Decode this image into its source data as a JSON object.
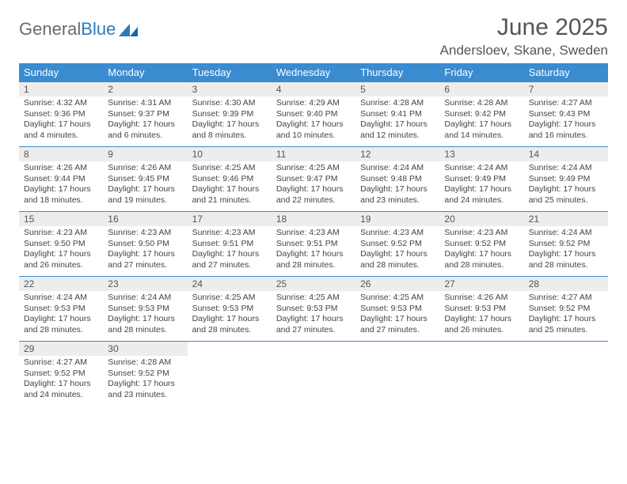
{
  "logo": {
    "text1": "General",
    "text2": "Blue"
  },
  "title": "June 2025",
  "location": "Andersloev, Skane, Sweden",
  "theme": {
    "header_bg": "#3a8bd0",
    "header_fg": "#ffffff",
    "daynum_bg": "#ededed",
    "border": "#3a8bd0"
  },
  "weekdays": [
    "Sunday",
    "Monday",
    "Tuesday",
    "Wednesday",
    "Thursday",
    "Friday",
    "Saturday"
  ],
  "days": [
    {
      "n": "1",
      "sunrise": "4:32 AM",
      "sunset": "9:36 PM",
      "daylight": "17 hours and 4 minutes."
    },
    {
      "n": "2",
      "sunrise": "4:31 AM",
      "sunset": "9:37 PM",
      "daylight": "17 hours and 6 minutes."
    },
    {
      "n": "3",
      "sunrise": "4:30 AM",
      "sunset": "9:39 PM",
      "daylight": "17 hours and 8 minutes."
    },
    {
      "n": "4",
      "sunrise": "4:29 AM",
      "sunset": "9:40 PM",
      "daylight": "17 hours and 10 minutes."
    },
    {
      "n": "5",
      "sunrise": "4:28 AM",
      "sunset": "9:41 PM",
      "daylight": "17 hours and 12 minutes."
    },
    {
      "n": "6",
      "sunrise": "4:28 AM",
      "sunset": "9:42 PM",
      "daylight": "17 hours and 14 minutes."
    },
    {
      "n": "7",
      "sunrise": "4:27 AM",
      "sunset": "9:43 PM",
      "daylight": "17 hours and 16 minutes."
    },
    {
      "n": "8",
      "sunrise": "4:26 AM",
      "sunset": "9:44 PM",
      "daylight": "17 hours and 18 minutes."
    },
    {
      "n": "9",
      "sunrise": "4:26 AM",
      "sunset": "9:45 PM",
      "daylight": "17 hours and 19 minutes."
    },
    {
      "n": "10",
      "sunrise": "4:25 AM",
      "sunset": "9:46 PM",
      "daylight": "17 hours and 21 minutes."
    },
    {
      "n": "11",
      "sunrise": "4:25 AM",
      "sunset": "9:47 PM",
      "daylight": "17 hours and 22 minutes."
    },
    {
      "n": "12",
      "sunrise": "4:24 AM",
      "sunset": "9:48 PM",
      "daylight": "17 hours and 23 minutes."
    },
    {
      "n": "13",
      "sunrise": "4:24 AM",
      "sunset": "9:49 PM",
      "daylight": "17 hours and 24 minutes."
    },
    {
      "n": "14",
      "sunrise": "4:24 AM",
      "sunset": "9:49 PM",
      "daylight": "17 hours and 25 minutes."
    },
    {
      "n": "15",
      "sunrise": "4:23 AM",
      "sunset": "9:50 PM",
      "daylight": "17 hours and 26 minutes."
    },
    {
      "n": "16",
      "sunrise": "4:23 AM",
      "sunset": "9:50 PM",
      "daylight": "17 hours and 27 minutes."
    },
    {
      "n": "17",
      "sunrise": "4:23 AM",
      "sunset": "9:51 PM",
      "daylight": "17 hours and 27 minutes."
    },
    {
      "n": "18",
      "sunrise": "4:23 AM",
      "sunset": "9:51 PM",
      "daylight": "17 hours and 28 minutes."
    },
    {
      "n": "19",
      "sunrise": "4:23 AM",
      "sunset": "9:52 PM",
      "daylight": "17 hours and 28 minutes."
    },
    {
      "n": "20",
      "sunrise": "4:23 AM",
      "sunset": "9:52 PM",
      "daylight": "17 hours and 28 minutes."
    },
    {
      "n": "21",
      "sunrise": "4:24 AM",
      "sunset": "9:52 PM",
      "daylight": "17 hours and 28 minutes."
    },
    {
      "n": "22",
      "sunrise": "4:24 AM",
      "sunset": "9:53 PM",
      "daylight": "17 hours and 28 minutes."
    },
    {
      "n": "23",
      "sunrise": "4:24 AM",
      "sunset": "9:53 PM",
      "daylight": "17 hours and 28 minutes."
    },
    {
      "n": "24",
      "sunrise": "4:25 AM",
      "sunset": "9:53 PM",
      "daylight": "17 hours and 28 minutes."
    },
    {
      "n": "25",
      "sunrise": "4:25 AM",
      "sunset": "9:53 PM",
      "daylight": "17 hours and 27 minutes."
    },
    {
      "n": "26",
      "sunrise": "4:25 AM",
      "sunset": "9:53 PM",
      "daylight": "17 hours and 27 minutes."
    },
    {
      "n": "27",
      "sunrise": "4:26 AM",
      "sunset": "9:53 PM",
      "daylight": "17 hours and 26 minutes."
    },
    {
      "n": "28",
      "sunrise": "4:27 AM",
      "sunset": "9:52 PM",
      "daylight": "17 hours and 25 minutes."
    },
    {
      "n": "29",
      "sunrise": "4:27 AM",
      "sunset": "9:52 PM",
      "daylight": "17 hours and 24 minutes."
    },
    {
      "n": "30",
      "sunrise": "4:28 AM",
      "sunset": "9:52 PM",
      "daylight": "17 hours and 23 minutes."
    }
  ],
  "labels": {
    "sunrise": "Sunrise:",
    "sunset": "Sunset:",
    "daylight": "Daylight:"
  }
}
